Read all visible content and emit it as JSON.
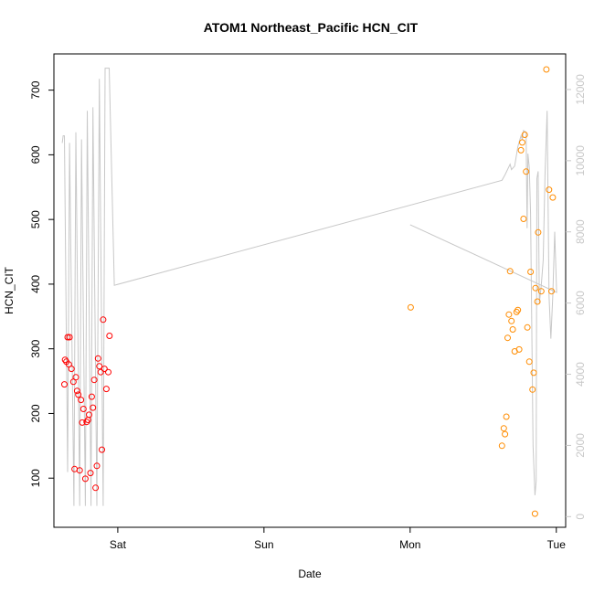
{
  "chart_data": {
    "type": "scatter",
    "title": "ATOM1 Northeast_Pacific HCN_CIT",
    "xlabel": "Date",
    "ylabel": "HCN_CIT",
    "x_unit": "days",
    "x_origin_label": "Sat",
    "xlim": [
      -0.437,
      3.064
    ],
    "ylim": [
      24,
      756
    ],
    "y2lim": [
      -300,
      13000
    ],
    "x_ticks": [
      {
        "value": 0,
        "label": "Sat"
      },
      {
        "value": 1,
        "label": "Sun"
      },
      {
        "value": 2,
        "label": "Mon"
      },
      {
        "value": 3,
        "label": "Tue"
      }
    ],
    "y_ticks": [
      100,
      200,
      300,
      400,
      500,
      600,
      700
    ],
    "y2_ticks": [
      0,
      2000,
      4000,
      6000,
      8000,
      10000,
      12000
    ],
    "grid": false,
    "legend": "none",
    "colors": {
      "series1": "#ff0000",
      "series2": "#ff8c00",
      "line": "#c8c8c8",
      "axis": "#000000",
      "axis_right": "#c8c8c8"
    },
    "series": [
      {
        "color": "#ff0000",
        "points": [
          [
            -0.365,
            245
          ],
          [
            -0.361,
            283
          ],
          [
            -0.352,
            280
          ],
          [
            -0.343,
            318
          ],
          [
            -0.335,
            276
          ],
          [
            -0.33,
            318
          ],
          [
            -0.317,
            269
          ],
          [
            -0.304,
            249
          ],
          [
            -0.296,
            114
          ],
          [
            -0.287,
            256
          ],
          [
            -0.278,
            235
          ],
          [
            -0.27,
            229
          ],
          [
            -0.261,
            112
          ],
          [
            -0.252,
            221
          ],
          [
            -0.243,
            186
          ],
          [
            -0.235,
            207
          ],
          [
            -0.222,
            99
          ],
          [
            -0.213,
            187
          ],
          [
            -0.204,
            190
          ],
          [
            -0.196,
            198
          ],
          [
            -0.187,
            108
          ],
          [
            -0.178,
            226
          ],
          [
            -0.17,
            209
          ],
          [
            -0.161,
            252
          ],
          [
            -0.152,
            85
          ],
          [
            -0.143,
            119
          ],
          [
            -0.135,
            285
          ],
          [
            -0.126,
            273
          ],
          [
            -0.117,
            264
          ],
          [
            -0.109,
            144
          ],
          [
            -0.1,
            345
          ],
          [
            -0.091,
            269
          ],
          [
            -0.078,
            238
          ],
          [
            -0.065,
            264
          ],
          [
            -0.057,
            320
          ]
        ]
      },
      {
        "color": "#ff8c00",
        "points": [
          [
            2.004,
            364
          ],
          [
            2.628,
            150
          ],
          [
            2.641,
            177
          ],
          [
            2.649,
            168
          ],
          [
            2.658,
            195
          ],
          [
            2.667,
            317
          ],
          [
            2.676,
            353
          ],
          [
            2.684,
            420
          ],
          [
            2.693,
            343
          ],
          [
            2.702,
            330
          ],
          [
            2.715,
            296
          ],
          [
            2.728,
            357
          ],
          [
            2.737,
            360
          ],
          [
            2.746,
            299
          ],
          [
            2.758,
            607
          ],
          [
            2.767,
            619
          ],
          [
            2.776,
            501
          ],
          [
            2.784,
            631
          ],
          [
            2.793,
            574
          ],
          [
            2.802,
            333
          ],
          [
            2.815,
            280
          ],
          [
            2.824,
            419
          ],
          [
            2.837,
            237
          ],
          [
            2.845,
            263
          ],
          [
            2.854,
            45
          ],
          [
            2.858,
            394
          ],
          [
            2.871,
            373
          ],
          [
            2.876,
            480
          ],
          [
            2.897,
            389
          ],
          [
            2.932,
            732
          ],
          [
            2.95,
            546
          ],
          [
            2.967,
            389
          ],
          [
            2.976,
            534
          ]
        ]
      }
    ],
    "line_series": {
      "axis": "right",
      "color": "#c8c8c8",
      "points": [
        [
          -0.38,
          10500
        ],
        [
          -0.374,
          10700
        ],
        [
          -0.365,
          10700
        ],
        [
          -0.343,
          1250
        ],
        [
          -0.33,
          10500
        ],
        [
          -0.3,
          300
        ],
        [
          -0.287,
          10800
        ],
        [
          -0.261,
          300
        ],
        [
          -0.248,
          10600
        ],
        [
          -0.222,
          300
        ],
        [
          -0.209,
          11400
        ],
        [
          -0.183,
          300
        ],
        [
          -0.17,
          11500
        ],
        [
          -0.143,
          300
        ],
        [
          -0.126,
          12300
        ],
        [
          -0.1,
          300
        ],
        [
          -0.087,
          12600
        ],
        [
          -0.059,
          12600
        ],
        [
          -0.024,
          6500
        ],
        [
          2.628,
          9450
        ],
        [
          2.649,
          9600
        ],
        [
          2.684,
          9900
        ],
        [
          2.693,
          9750
        ],
        [
          2.715,
          9850
        ],
        [
          2.737,
          10400
        ],
        [
          2.758,
          10700
        ],
        [
          2.767,
          10600
        ],
        [
          2.776,
          10850
        ],
        [
          2.793,
          10800
        ],
        [
          2.8,
          8100
        ],
        [
          2.806,
          10200
        ],
        [
          2.815,
          9800
        ],
        [
          2.824,
          8500
        ],
        [
          2.841,
          2000
        ],
        [
          2.854,
          600
        ],
        [
          2.862,
          1000
        ],
        [
          2.867,
          9500
        ],
        [
          2.876,
          9700
        ],
        [
          2.884,
          6000
        ],
        [
          2.897,
          6500
        ],
        [
          2.91,
          7200
        ],
        [
          2.923,
          9600
        ],
        [
          2.937,
          11400
        ],
        [
          2.95,
          6200
        ],
        [
          2.963,
          5000
        ],
        [
          2.976,
          6200
        ],
        [
          2.989,
          8000
        ],
        [
          3.002,
          6300
        ],
        [
          2.0,
          8200
        ]
      ]
    }
  }
}
